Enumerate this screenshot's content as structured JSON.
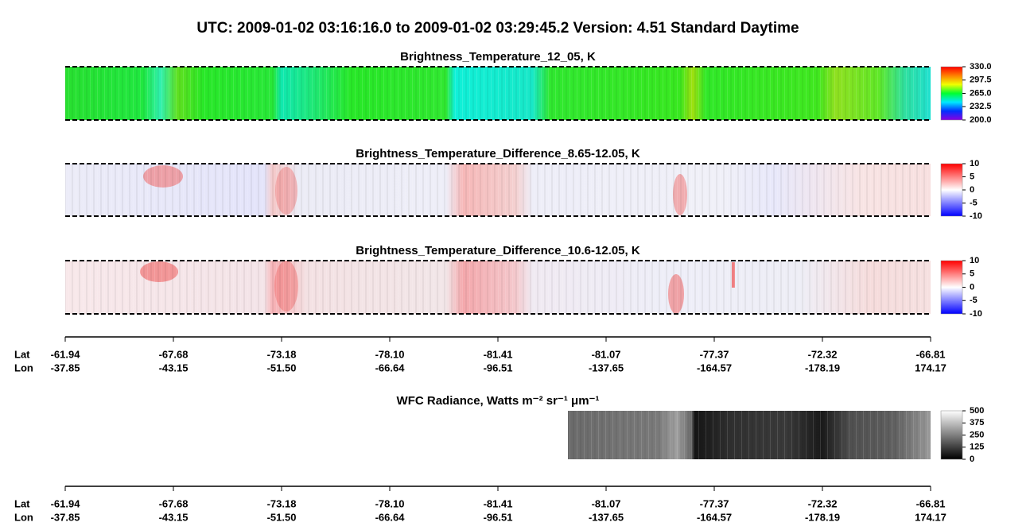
{
  "title": "UTC:  2009-01-02   03:16:16.0  to  2009-01-02   03:29:45.2    Version: 4.51  Standard Daytime",
  "chart_data": [
    {
      "type": "heatmap",
      "title": "Brightness_Temperature_12_05, K",
      "clim": [
        200,
        330
      ],
      "cticks": [
        {
          "value": 330,
          "label": "330.0"
        },
        {
          "value": 297.5,
          "label": "297.5"
        },
        {
          "value": 265,
          "label": "265.0"
        },
        {
          "value": 232.5,
          "label": "232.5"
        },
        {
          "value": 200,
          "label": "200.0"
        }
      ],
      "colormap": [
        "#8a00e0",
        "#0030ff",
        "#00e8ff",
        "#00ff30",
        "#f0ff00",
        "#ff8000",
        "#ff0000"
      ]
    },
    {
      "type": "heatmap",
      "title": "Brightness_Temperature_Difference_8.65-12.05, K",
      "clim": [
        -10,
        10
      ],
      "cticks": [
        10,
        5,
        0,
        -5,
        -10
      ],
      "colormap": [
        "#0000ff",
        "#8080ff",
        "#ffffff",
        "#ff8080",
        "#ff0000"
      ]
    },
    {
      "type": "heatmap",
      "title": "Brightness_Temperature_Difference_10.6-12.05, K",
      "clim": [
        -10,
        10
      ],
      "cticks": [
        10,
        5,
        0,
        -5,
        -10
      ],
      "colormap": [
        "#0000ff",
        "#8080ff",
        "#ffffff",
        "#ff8080",
        "#ff0000"
      ]
    },
    {
      "type": "heatmap",
      "title": "WFC Radiance, Watts m⁻² sr⁻¹ μm⁻¹",
      "clim": [
        0,
        500
      ],
      "cticks": [
        500,
        375,
        250,
        125,
        0
      ],
      "colormap": [
        "#000000",
        "#ffffff"
      ]
    }
  ],
  "x_axis": {
    "labels": [
      "Lat",
      "Lon"
    ],
    "lat": [
      "-61.94",
      "-67.68",
      "-73.18",
      "-78.10",
      "-81.41",
      "-81.07",
      "-77.37",
      "-72.32",
      "-66.81"
    ],
    "lon": [
      "-37.85",
      "-43.15",
      "-51.50",
      "-66.64",
      "-96.51",
      "-137.65",
      "-164.57",
      "-178.19",
      "174.17"
    ]
  }
}
